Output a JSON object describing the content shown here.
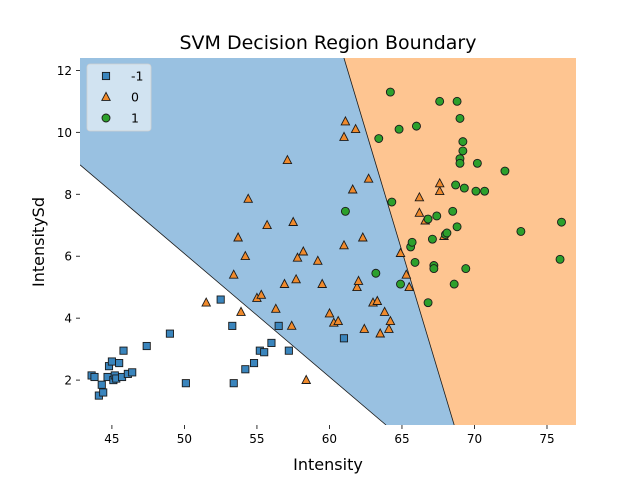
{
  "chart_data": {
    "type": "scatter",
    "title": "SVM Decision Region Boundary",
    "xlabel": "Intensity",
    "ylabel": "IntensitySd",
    "xlim": [
      42.8,
      77
    ],
    "ylim": [
      0.55,
      12.4
    ],
    "xticks": [
      45,
      50,
      55,
      60,
      65,
      70,
      75
    ],
    "yticks": [
      2,
      4,
      6,
      8,
      10,
      12
    ],
    "grid": false,
    "legend_position": "top-left",
    "regions": [
      {
        "class": "-1",
        "color": "#ffffff"
      },
      {
        "class": "0",
        "color": "#99c1e1"
      },
      {
        "class": "1",
        "color": "#fec591"
      }
    ],
    "boundaries": [
      {
        "between": [
          "-1",
          "0"
        ],
        "points": [
          [
            42.8,
            8.95
          ],
          [
            63.9,
            0.55
          ]
        ]
      },
      {
        "between": [
          "0",
          "1"
        ],
        "points": [
          [
            61.0,
            12.4
          ],
          [
            68.6,
            0.55
          ]
        ]
      }
    ],
    "series": [
      {
        "name": "-1",
        "marker": "square",
        "color": "#3a85bd",
        "points": [
          [
            43.6,
            2.15
          ],
          [
            43.8,
            2.1
          ],
          [
            44.1,
            1.5
          ],
          [
            44.3,
            1.85
          ],
          [
            44.4,
            1.6
          ],
          [
            44.7,
            2.1
          ],
          [
            44.8,
            2.45
          ],
          [
            45.0,
            2.6
          ],
          [
            45.1,
            2.0
          ],
          [
            45.2,
            2.15
          ],
          [
            45.3,
            2.05
          ],
          [
            45.5,
            2.55
          ],
          [
            45.7,
            2.1
          ],
          [
            45.8,
            2.95
          ],
          [
            46.1,
            2.2
          ],
          [
            46.4,
            2.25
          ],
          [
            47.4,
            3.1
          ],
          [
            49.0,
            3.5
          ],
          [
            50.1,
            1.9
          ],
          [
            52.5,
            4.6
          ],
          [
            53.3,
            3.75
          ],
          [
            53.4,
            1.9
          ],
          [
            54.2,
            2.35
          ],
          [
            54.8,
            2.55
          ],
          [
            55.2,
            2.95
          ],
          [
            55.5,
            2.9
          ],
          [
            56.0,
            3.2
          ],
          [
            56.5,
            3.75
          ],
          [
            57.2,
            2.95
          ],
          [
            61.0,
            3.35
          ]
        ]
      },
      {
        "name": "0",
        "marker": "triangle",
        "color": "#f08a2c",
        "points": [
          [
            51.5,
            4.5
          ],
          [
            53.4,
            5.4
          ],
          [
            53.7,
            6.6
          ],
          [
            53.9,
            4.2
          ],
          [
            54.2,
            6.0
          ],
          [
            54.4,
            7.85
          ],
          [
            55.0,
            4.65
          ],
          [
            55.3,
            4.75
          ],
          [
            55.7,
            7.0
          ],
          [
            56.3,
            4.3
          ],
          [
            56.9,
            5.1
          ],
          [
            57.1,
            9.1
          ],
          [
            57.4,
            3.75
          ],
          [
            57.5,
            7.1
          ],
          [
            57.7,
            5.25
          ],
          [
            57.8,
            5.95
          ],
          [
            58.2,
            6.15
          ],
          [
            58.4,
            2.0
          ],
          [
            59.2,
            5.85
          ],
          [
            59.5,
            5.1
          ],
          [
            60.0,
            4.15
          ],
          [
            60.3,
            3.85
          ],
          [
            60.6,
            3.9
          ],
          [
            61.0,
            6.35
          ],
          [
            61.0,
            9.85
          ],
          [
            61.1,
            10.35
          ],
          [
            61.6,
            8.15
          ],
          [
            61.8,
            10.1
          ],
          [
            61.9,
            5.0
          ],
          [
            62.0,
            5.2
          ],
          [
            62.3,
            6.6
          ],
          [
            62.4,
            3.65
          ],
          [
            62.7,
            8.5
          ],
          [
            63.0,
            4.5
          ],
          [
            63.3,
            4.55
          ],
          [
            63.5,
            3.5
          ],
          [
            63.8,
            4.2
          ],
          [
            64.1,
            3.65
          ],
          [
            64.2,
            3.9
          ],
          [
            64.9,
            6.1
          ],
          [
            65.3,
            5.4
          ],
          [
            65.5,
            5.0
          ],
          [
            66.2,
            7.9
          ],
          [
            66.2,
            7.4
          ],
          [
            66.6,
            7.15
          ],
          [
            67.6,
            8.1
          ],
          [
            67.6,
            8.35
          ],
          [
            67.9,
            6.65
          ]
        ]
      },
      {
        "name": "1",
        "marker": "circle",
        "color": "#2ca02c",
        "points": [
          [
            61.1,
            7.45
          ],
          [
            63.2,
            5.45
          ],
          [
            63.4,
            9.8
          ],
          [
            64.2,
            11.3
          ],
          [
            64.3,
            7.75
          ],
          [
            64.8,
            10.1
          ],
          [
            64.9,
            5.1
          ],
          [
            65.6,
            6.3
          ],
          [
            65.7,
            6.45
          ],
          [
            65.9,
            5.8
          ],
          [
            66.0,
            10.2
          ],
          [
            66.8,
            7.2
          ],
          [
            66.8,
            4.5
          ],
          [
            67.1,
            6.55
          ],
          [
            67.2,
            5.7
          ],
          [
            67.2,
            5.6
          ],
          [
            67.4,
            7.3
          ],
          [
            67.6,
            11.0
          ],
          [
            68.0,
            6.7
          ],
          [
            68.1,
            6.75
          ],
          [
            68.5,
            7.45
          ],
          [
            68.6,
            5.1
          ],
          [
            68.7,
            8.3
          ],
          [
            68.8,
            11.0
          ],
          [
            68.8,
            6.95
          ],
          [
            69.0,
            10.45
          ],
          [
            69.0,
            9.15
          ],
          [
            69.0,
            9.0
          ],
          [
            69.2,
            9.4
          ],
          [
            69.2,
            9.7
          ],
          [
            69.3,
            8.2
          ],
          [
            69.4,
            5.6
          ],
          [
            70.1,
            8.1
          ],
          [
            70.2,
            9.0
          ],
          [
            70.7,
            8.1
          ],
          [
            72.1,
            8.75
          ],
          [
            73.2,
            6.8
          ],
          [
            75.9,
            5.9
          ],
          [
            76.0,
            7.1
          ]
        ]
      }
    ]
  }
}
